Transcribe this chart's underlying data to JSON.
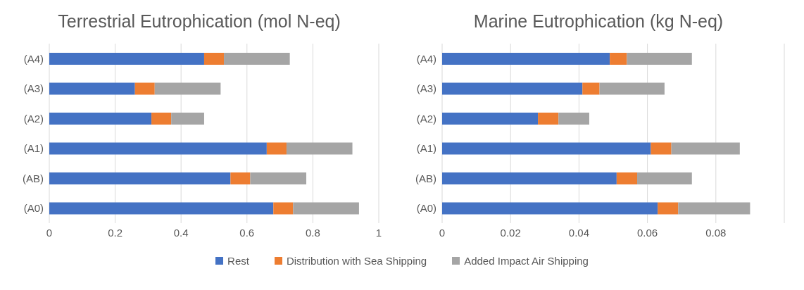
{
  "chart_data": [
    {
      "type": "bar",
      "title": "Terrestrial Eutrophication (mol N-eq)",
      "orientation": "horizontal",
      "stacked": true,
      "categories": [
        "(A4)",
        "(A3)",
        "(A2)",
        "(A1)",
        "(AB)",
        "(A0)"
      ],
      "series": [
        {
          "name": "Rest",
          "color": "#4472c4",
          "values": [
            0.47,
            0.26,
            0.31,
            0.66,
            0.55,
            0.68
          ]
        },
        {
          "name": "Distribution with Sea Shipping",
          "color": "#ed7d31",
          "values": [
            0.06,
            0.06,
            0.06,
            0.06,
            0.06,
            0.06
          ]
        },
        {
          "name": "Added Impact Air Shipping",
          "color": "#a5a5a5",
          "values": [
            0.2,
            0.2,
            0.1,
            0.2,
            0.17,
            0.2
          ]
        }
      ],
      "xlim": [
        0,
        1
      ],
      "xticks": [
        0,
        0.2,
        0.4,
        0.6,
        0.8,
        1
      ],
      "grid": "x",
      "legend": "bottom"
    },
    {
      "type": "bar",
      "title": "Marine Eutrophication (kg N-eq)",
      "orientation": "horizontal",
      "stacked": true,
      "categories": [
        "(A4)",
        "(A3)",
        "(A2)",
        "(A1)",
        "(AB)",
        "(A0)"
      ],
      "series": [
        {
          "color": "#4472c4",
          "values": [
            0.049,
            0.041,
            0.028,
            0.061,
            0.051,
            0.063
          ]
        },
        {
          "color": "#ed7d31",
          "values": [
            0.005,
            0.005,
            0.006,
            0.006,
            0.006,
            0.006
          ]
        },
        {
          "color": "#a5a5a5",
          "values": [
            0.019,
            0.019,
            0.009,
            0.02,
            0.016,
            0.021
          ]
        }
      ],
      "xlim": [
        0,
        0.1
      ],
      "xticks": [
        0,
        0.02,
        0.04,
        0.06,
        0.08
      ],
      "grid": "x"
    }
  ]
}
